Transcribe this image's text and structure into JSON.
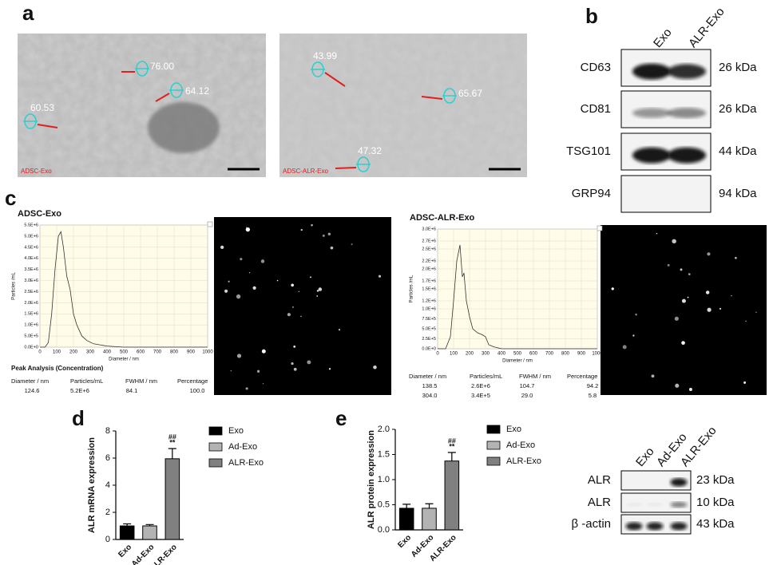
{
  "panel_labels": [
    "a",
    "b",
    "c",
    "d",
    "e"
  ],
  "tem": [
    {
      "caption": "ADSC-Exo",
      "measurements": [
        "76.00",
        "64.12",
        "60.53"
      ]
    },
    {
      "caption": "ADSC-ALR-Exo",
      "measurements": [
        "43.99",
        "65.67",
        "47.32"
      ]
    }
  ],
  "western_b": {
    "columns": [
      "Exo",
      "ALR-Exo"
    ],
    "rows": [
      {
        "protein": "CD63",
        "size": "26 kDa"
      },
      {
        "protein": "CD81",
        "size": "26 kDa"
      },
      {
        "protein": "TSG101",
        "size": "44 kDa"
      },
      {
        "protein": "GRP94",
        "size": "94 kDa"
      }
    ]
  },
  "western_e": {
    "columns": [
      "Exo",
      "Ad-Exo",
      "ALR-Exo"
    ],
    "rows": [
      {
        "protein": "ALR",
        "size": "23 kDa"
      },
      {
        "protein": "ALR",
        "size": "10 kDa"
      },
      {
        "protein": "β -actin",
        "size": "43 kDa"
      }
    ]
  },
  "nta": [
    {
      "peak_title": "Peak Analysis (Concentration)",
      "header": [
        "Diameter / nm",
        "Particles/mL",
        "FWHM / nm",
        "Percentage"
      ],
      "rows": [
        [
          "124.6",
          "5.2E+6",
          "84.1",
          "100.0"
        ]
      ]
    },
    {
      "header": [
        "Diameter / nm",
        "Particles/mL",
        "FWHM / nm",
        "Percentage"
      ],
      "rows": [
        [
          "138.5",
          "2.6E+6",
          "104.7",
          "94.2"
        ],
        [
          "304.0",
          "3.4E+5",
          "29.0",
          "5.8"
        ]
      ]
    }
  ],
  "chart_data": [
    {
      "type": "line",
      "title": "ADSC-Exo",
      "x_label": "Diameter / nm",
      "y_label": "Particles /mL",
      "color": "#333333",
      "grid": true,
      "x": [
        0,
        30,
        50,
        70,
        90,
        110,
        125,
        140,
        160,
        180,
        200,
        220,
        250,
        280,
        320,
        400,
        500,
        1000
      ],
      "values": [
        0,
        0,
        200000,
        1500000,
        3500000,
        5000000,
        5200000,
        4500000,
        3200000,
        2600000,
        1500000,
        1000000,
        500000,
        300000,
        150000,
        50000,
        0,
        0
      ],
      "xlim": [
        0,
        1000
      ],
      "xticks": [
        0,
        100,
        200,
        300,
        400,
        500,
        600,
        700,
        800,
        900,
        1000
      ],
      "ylim": [
        0,
        5500000
      ],
      "yticks": [
        {
          "value": 0,
          "label": "0.0E+0"
        },
        {
          "value": 500000,
          "label": "5.0E+5"
        },
        {
          "value": 1000000,
          "label": "1.0E+6"
        },
        {
          "value": 1500000,
          "label": "1.5E+6"
        },
        {
          "value": 2000000,
          "label": "2.0E+6"
        },
        {
          "value": 2500000,
          "label": "2.5E+6"
        },
        {
          "value": 3000000,
          "label": "3.0E+6"
        },
        {
          "value": 3500000,
          "label": "3.5E+6"
        },
        {
          "value": 4000000,
          "label": "4.0E+6"
        },
        {
          "value": 4500000,
          "label": "4.5E+6"
        },
        {
          "value": 5000000,
          "label": "5.0E+6"
        },
        {
          "value": 5500000,
          "label": "5.5E+6"
        }
      ]
    },
    {
      "type": "line",
      "title": "ADSC-ALR-Exo",
      "x_label": "Diameter / nm",
      "y_label": "Particles /mL",
      "color": "#333333",
      "grid": true,
      "x": [
        0,
        50,
        80,
        100,
        120,
        140,
        155,
        165,
        180,
        200,
        220,
        250,
        280,
        300,
        320,
        350,
        400,
        1000
      ],
      "values": [
        0,
        0,
        300000,
        1200000,
        2200000,
        2600000,
        1800000,
        1900000,
        1200000,
        800000,
        500000,
        400000,
        350000,
        300000,
        100000,
        50000,
        0,
        0
      ],
      "xlim": [
        0,
        1000
      ],
      "xticks": [
        0,
        100,
        200,
        300,
        400,
        500,
        600,
        700,
        800,
        900,
        1000
      ],
      "ylim": [
        0,
        3000000
      ],
      "yticks": [
        {
          "value": 0,
          "label": "0.0E+0"
        },
        {
          "value": 250000,
          "label": "2.5E+5"
        },
        {
          "value": 500000,
          "label": "5.0E+5"
        },
        {
          "value": 750000,
          "label": "7.5E+5"
        },
        {
          "value": 1000000,
          "label": "1.0E+6"
        },
        {
          "value": 1200000,
          "label": "1.2E+6"
        },
        {
          "value": 1500000,
          "label": "1.5E+6"
        },
        {
          "value": 1700000,
          "label": "1.7E+6"
        },
        {
          "value": 2000000,
          "label": "2.0E+6"
        },
        {
          "value": 2200000,
          "label": "2.2E+6"
        },
        {
          "value": 2500000,
          "label": "2.5E+6"
        },
        {
          "value": 2700000,
          "label": "2.7E+6"
        },
        {
          "value": 3000000,
          "label": "3.0E+6"
        }
      ]
    },
    {
      "type": "bar",
      "y_label": "ALR mRNA expression",
      "categories": [
        "Exo",
        "Ad-Exo",
        "ALR-Exo"
      ],
      "values": [
        1.0,
        1.0,
        5.95
      ],
      "errors": [
        0.15,
        0.1,
        0.75
      ],
      "colors": [
        "#000000",
        "#b3b3b3",
        "#808080"
      ],
      "annotations": [
        "##",
        "**"
      ],
      "legend": true,
      "ylim": [
        0,
        8
      ],
      "yticks": [
        0,
        2,
        4,
        6,
        8
      ]
    },
    {
      "type": "bar",
      "y_label": "ALR protein expression",
      "categories": [
        "Exo",
        "Ad-Exo",
        "ALR-Exo"
      ],
      "values": [
        0.43,
        0.43,
        1.37
      ],
      "errors": [
        0.08,
        0.09,
        0.17
      ],
      "colors": [
        "#000000",
        "#b3b3b3",
        "#808080"
      ],
      "annotations": [
        "##",
        "**"
      ],
      "legend": true,
      "ylim": [
        0,
        2
      ],
      "yticks": [
        {
          "value": 0,
          "label": "0.0"
        },
        0.5,
        {
          "value": 1,
          "label": "1.0"
        },
        1.5,
        {
          "value": 2,
          "label": "2.0"
        }
      ]
    }
  ]
}
